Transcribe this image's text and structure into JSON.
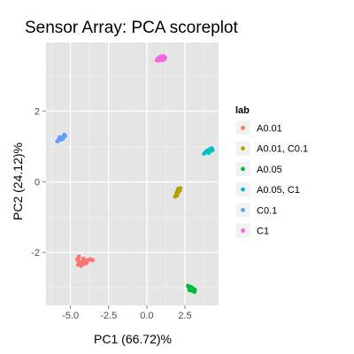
{
  "chart_data": {
    "type": "scatter",
    "title": "Sensor Array: PCA scoreplot",
    "xlabel": "PC1 (66.72)%",
    "ylabel": "PC2 (24.12)%",
    "xlim": [
      -6.6,
      4.7
    ],
    "ylim": [
      -3.5,
      3.95
    ],
    "x_ticks": [
      -5.0,
      -2.5,
      0.0,
      2.5
    ],
    "x_tick_labels": [
      "-5.0",
      "-2.5",
      "0.0",
      "2.5"
    ],
    "y_ticks": [
      -2,
      0,
      2
    ],
    "y_tick_labels": [
      "-2",
      "0",
      "2"
    ],
    "grid": true,
    "legend": {
      "title": "lab",
      "position": "right"
    },
    "series": [
      {
        "name": "A0.01",
        "color": "#F8766D",
        "points": [
          [
            -4.55,
            -2.2
          ],
          [
            -4.45,
            -2.25
          ],
          [
            -4.35,
            -2.3
          ],
          [
            -4.2,
            -2.28
          ],
          [
            -4.05,
            -2.25
          ],
          [
            -3.9,
            -2.22
          ],
          [
            -3.7,
            -2.2
          ],
          [
            -3.55,
            -2.22
          ],
          [
            -4.5,
            -2.35
          ],
          [
            -4.3,
            -2.38
          ],
          [
            -4.1,
            -2.33
          ],
          [
            -4.45,
            -2.12
          ],
          [
            -4.25,
            -2.27
          ],
          [
            -3.95,
            -2.3
          ],
          [
            -4.15,
            -2.18
          ]
        ]
      },
      {
        "name": "A0.01, C0.1",
        "color": "#B79F00",
        "points": [
          [
            1.85,
            -0.42
          ],
          [
            1.92,
            -0.36
          ],
          [
            1.97,
            -0.3
          ],
          [
            2.02,
            -0.26
          ],
          [
            2.05,
            -0.2
          ],
          [
            2.12,
            -0.22
          ],
          [
            2.2,
            -0.18
          ],
          [
            2.08,
            -0.28
          ],
          [
            1.99,
            -0.38
          ],
          [
            2.15,
            -0.25
          ]
        ]
      },
      {
        "name": "A0.05",
        "color": "#00BA38",
        "points": [
          [
            2.7,
            -2.95
          ],
          [
            2.78,
            -3.02
          ],
          [
            2.85,
            -3.05
          ],
          [
            2.95,
            -3.08
          ],
          [
            3.05,
            -3.1
          ],
          [
            3.15,
            -3.06
          ],
          [
            2.88,
            -2.98
          ],
          [
            3.0,
            -3.02
          ],
          [
            2.8,
            -3.07
          ],
          [
            3.12,
            -3.12
          ]
        ]
      },
      {
        "name": "A0.05, C1",
        "color": "#00BFC4",
        "points": [
          [
            3.75,
            0.8
          ],
          [
            3.85,
            0.84
          ],
          [
            3.95,
            0.88
          ],
          [
            4.05,
            0.9
          ],
          [
            4.15,
            0.93
          ],
          [
            4.25,
            0.95
          ],
          [
            4.3,
            0.9
          ],
          [
            4.05,
            0.82
          ],
          [
            3.9,
            0.86
          ],
          [
            4.2,
            0.88
          ]
        ]
      },
      {
        "name": "C0.1",
        "color": "#619CFF",
        "points": [
          [
            -5.85,
            1.15
          ],
          [
            -5.75,
            1.2
          ],
          [
            -5.65,
            1.25
          ],
          [
            -5.55,
            1.24
          ],
          [
            -5.45,
            1.28
          ],
          [
            -5.35,
            1.3
          ],
          [
            -5.6,
            1.2
          ],
          [
            -5.7,
            1.26
          ],
          [
            -5.5,
            1.22
          ],
          [
            -5.4,
            1.33
          ]
        ]
      },
      {
        "name": "C1",
        "color": "#F564E3",
        "points": [
          [
            0.65,
            3.45
          ],
          [
            0.75,
            3.5
          ],
          [
            0.85,
            3.48
          ],
          [
            0.95,
            3.52
          ],
          [
            1.05,
            3.5
          ],
          [
            1.15,
            3.47
          ],
          [
            0.8,
            3.44
          ],
          [
            1.0,
            3.45
          ],
          [
            1.2,
            3.52
          ],
          [
            0.9,
            3.55
          ],
          [
            1.1,
            3.56
          ]
        ]
      }
    ]
  }
}
